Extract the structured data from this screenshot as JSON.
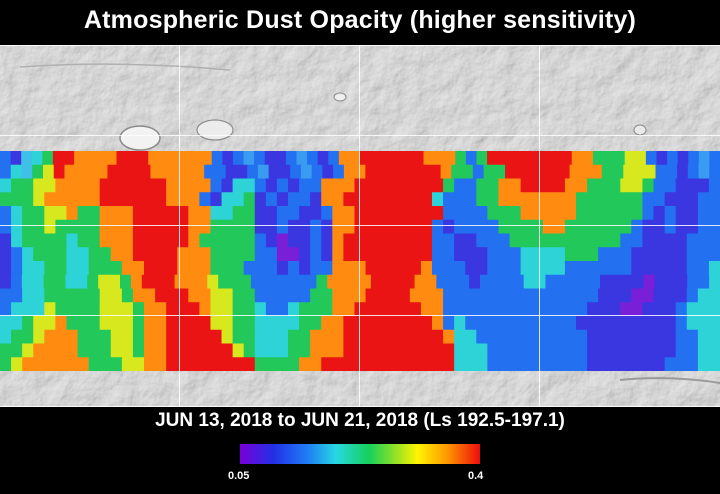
{
  "title": "Atmospheric Dust Opacity (higher sensitivity)",
  "date_range": "JUN 13, 2018 to JUN 21, 2018 (Ls 192.5-197.1)",
  "colorbar": {
    "min_label": "0.05",
    "max_label": "0.4",
    "colors": [
      "#7a00d8",
      "#2230e6",
      "#1f7df5",
      "#27d7e2",
      "#17d05a",
      "#8ae02a",
      "#fff400",
      "#ff9b00",
      "#ee0d0d"
    ]
  },
  "map": {
    "projection": "global cylindrical",
    "base": "grayscale shaded relief",
    "data_band": "mid-latitudes only",
    "dust_opacity_rows": [
      [
        "BUACGRROOOORRROOOOOOBUBLBUUBLBUBOORRRRRROOOGBGRRRRRRRROOGGGYYBUBUBLB",
        "BCAGYROOOORRRROOOOOBBUUBLUUBLBUBOORRRRRRROGGBGGRRRRRROOOGGYYYBBUBLB",
        "CGGYYOOOORRRRRROOOOBUCCBUBUBBOOORRRRRRRRGBBGGOORRRROOGGGYYGBBUUUB",
        "GGGYOOOOORRRRRROOOBUCCGUBUBBUOORRRRRRRRCBBBGGOOOOOOOGGGGGGBBUUUBB"
      ],
      [
        "BCGGYYOGGOOORRRRROOCCGGUUBBUUBOORRRRRRRRBBBBGGGOOOOOGGGGGGBUBUUBB",
        "BCGGYGGGGOOORRRRROOGGGGUUBUUBUOORRRRRRRBUBBBBGGGGOOGGGGGGBUUBUUBB",
        "UCGGGGCGGOOORRRRROGGGGGBUPUUBUORRRRRRRRBBUUBBBGGGGGGGGGGBBUUUUBBB",
        "UBCGGGCCGGOORRRROOOGGGGBBPPUBUORRRRRRRRBBUUUBBBCCCCGGGBBBUUUUUBBB"
      ],
      [
        "UBCCGGCCGGGOORRROOOGGGBBBUBUBBOOORRRRROBBBUUBBBCCCCBBBBBBUUUUUBBC",
        "UBCCGGCCGYYGORRROOOYGGGBBBBBBGOOOORRRROOBBBUBBBBCCBBBBBUUUUPUUUBBC",
        "BBCCGGGGGYYGOORRROOYYGGBBBBBGGOOORRRROOOBBBBBBBBBBBBBBUUUPPUUUBCC",
        "BCCCYGGGGYYYGOORRROYYGGCBBCGGGOORRRRRROOBBBBBBBBBBBBBUUUPPUUUBCCC"
      ],
      [
        "CCGYYOGGGYYYGOORRRRYYGGCCCCGGOORRRRRRRROBCBBBBBBBBBBUUUUUUUUUBCCC",
        "CGGYOOOGGGYYGOORRRRRYGGCCCGGOOORRRRRRRRROCCBBBBBBBBBBUUUUUUUUBBCC",
        "GGYOOOOGGGYYGOORRRRRRYGCCCGGOOORRRRRRRRRRCCCBBBBBBBBBUUUUUUUUBBCC",
        "GYOOOOOOGGGYYOORRRRRRRRGGGGOORRRRRRRRRRRRCCCBBBBBBBBBUUUUUUUBBBCC"
      ]
    ]
  }
}
